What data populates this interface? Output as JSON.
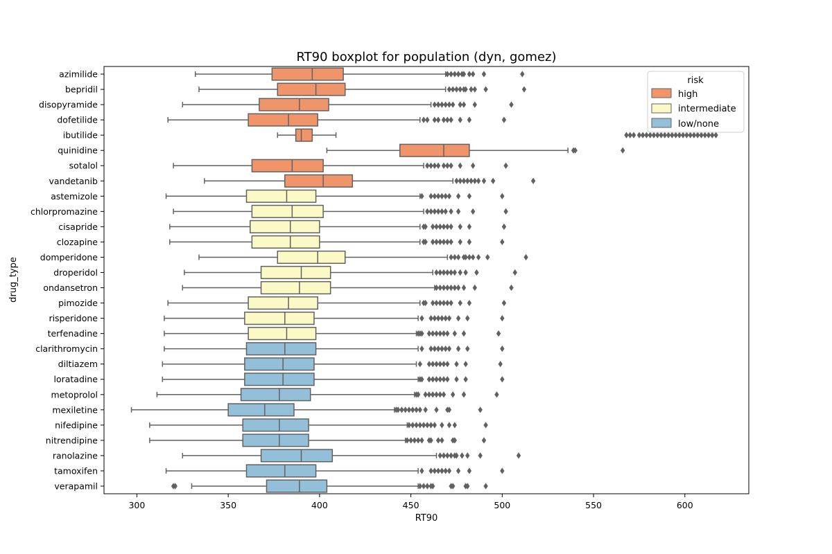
{
  "chart_data": {
    "type": "boxplot",
    "orientation": "horizontal",
    "title": "RT90 boxplot for population (dyn, gomez)",
    "xlabel": "RT90",
    "ylabel": "drug_type",
    "xlim": [
      282,
      635
    ],
    "xticks": [
      300,
      350,
      400,
      450,
      500,
      550,
      600
    ],
    "legend": {
      "title": "risk",
      "placement": "top-right",
      "entries": [
        {
          "label": "high",
          "color": "#f0956a"
        },
        {
          "label": "intermediate",
          "color": "#fbf9c6"
        },
        {
          "label": "low/none",
          "color": "#93c0d8"
        }
      ]
    },
    "colors": {
      "box_edge": "#616161",
      "frame": "#000000"
    },
    "drugs": [
      {
        "name": "azimilide",
        "risk": "high",
        "whisker_low": 332,
        "q1": 374,
        "median": 396,
        "q3": 413,
        "whisker_high": 469,
        "outliers": [
          470,
          472,
          474,
          476,
          478,
          479,
          482,
          484,
          490,
          511
        ]
      },
      {
        "name": "bepridil",
        "risk": "high",
        "whisker_low": 334,
        "q1": 377,
        "median": 398,
        "q3": 414,
        "whisker_high": 469,
        "outliers": [
          471,
          473,
          475,
          477,
          479,
          480,
          483,
          485,
          491,
          512
        ]
      },
      {
        "name": "disopyramide",
        "risk": "high",
        "whisker_low": 325,
        "q1": 367,
        "median": 389,
        "q3": 405,
        "whisker_high": 461,
        "outliers": [
          463,
          465,
          467,
          469,
          471,
          473,
          477,
          479,
          485,
          505
        ]
      },
      {
        "name": "dofetilide",
        "risk": "high",
        "whisker_low": 317,
        "q1": 361,
        "median": 383,
        "q3": 399,
        "whisker_high": 455,
        "outliers": [
          457,
          459,
          463,
          465,
          468,
          470,
          472,
          477,
          482,
          501
        ]
      },
      {
        "name": "ibutilide",
        "risk": "high",
        "whisker_low": 377,
        "q1": 387,
        "median": 390,
        "q3": 396,
        "whisker_high": 409,
        "outliers": [
          568,
          570,
          572,
          575,
          577,
          579,
          581,
          583,
          585,
          587,
          589,
          591,
          593,
          595,
          597,
          599,
          601,
          603,
          605,
          607,
          609,
          611,
          613,
          615,
          617
        ]
      },
      {
        "name": "quinidine",
        "risk": "high",
        "whisker_low": 404,
        "q1": 444,
        "median": 468,
        "q3": 482,
        "whisker_high": 536,
        "outliers": [
          539,
          540,
          566
        ]
      },
      {
        "name": "sotalol",
        "risk": "high",
        "whisker_low": 320,
        "q1": 363,
        "median": 385,
        "q3": 402,
        "whisker_high": 457,
        "outliers": [
          459,
          461,
          463,
          465,
          468,
          470,
          472,
          477,
          484,
          502
        ]
      },
      {
        "name": "vandetanib",
        "risk": "high",
        "whisker_low": 337,
        "q1": 381,
        "median": 402,
        "q3": 418,
        "whisker_high": 473,
        "outliers": [
          475,
          477,
          479,
          481,
          483,
          485,
          487,
          490,
          495,
          517
        ]
      },
      {
        "name": "astemizole",
        "risk": "intermediate",
        "whisker_low": 316,
        "q1": 360,
        "median": 382,
        "q3": 398,
        "whisker_high": 455,
        "outliers": [
          456,
          461,
          463,
          465,
          467,
          469,
          471,
          476,
          482,
          500
        ]
      },
      {
        "name": "chlorpromazine",
        "risk": "intermediate",
        "whisker_low": 320,
        "q1": 363,
        "median": 385,
        "q3": 402,
        "whisker_high": 457,
        "outliers": [
          459,
          461,
          463,
          465,
          467,
          469,
          472,
          476,
          484,
          502
        ]
      },
      {
        "name": "cisapride",
        "risk": "intermediate",
        "whisker_low": 318,
        "q1": 362,
        "median": 384,
        "q3": 400,
        "whisker_high": 455,
        "outliers": [
          457,
          458,
          462,
          464,
          466,
          468,
          470,
          472,
          477,
          482,
          501
        ]
      },
      {
        "name": "clozapine",
        "risk": "intermediate",
        "whisker_low": 318,
        "q1": 363,
        "median": 384,
        "q3": 400,
        "whisker_high": 455,
        "outliers": [
          457,
          458,
          462,
          464,
          466,
          468,
          470,
          472,
          477,
          482,
          500
        ]
      },
      {
        "name": "domperidone",
        "risk": "intermediate",
        "whisker_low": 334,
        "q1": 377,
        "median": 399,
        "q3": 414,
        "whisker_high": 470,
        "outliers": [
          472,
          474,
          476,
          479,
          480,
          482,
          484,
          487,
          492,
          513
        ]
      },
      {
        "name": "droperidol",
        "risk": "intermediate",
        "whisker_low": 326,
        "q1": 368,
        "median": 390,
        "q3": 406,
        "whisker_high": 462,
        "outliers": [
          464,
          466,
          468,
          470,
          472,
          474,
          477,
          480,
          486,
          507
        ]
      },
      {
        "name": "ondansetron",
        "risk": "intermediate",
        "whisker_low": 325,
        "q1": 368,
        "median": 389,
        "q3": 406,
        "whisker_high": 463,
        "outliers": [
          464,
          466,
          468,
          470,
          472,
          474,
          476,
          479,
          485,
          505
        ]
      },
      {
        "name": "pimozide",
        "risk": "intermediate",
        "whisker_low": 317,
        "q1": 361,
        "median": 383,
        "q3": 399,
        "whisker_high": 455,
        "outliers": [
          457,
          458,
          462,
          464,
          466,
          468,
          470,
          472,
          477,
          482,
          501
        ]
      },
      {
        "name": "risperidone",
        "risk": "intermediate",
        "whisker_low": 315,
        "q1": 359,
        "median": 381,
        "q3": 397,
        "whisker_high": 454,
        "outliers": [
          456,
          461,
          463,
          465,
          467,
          469,
          471,
          476,
          481,
          500
        ]
      },
      {
        "name": "terfenadine",
        "risk": "intermediate",
        "whisker_low": 315,
        "q1": 361,
        "median": 382,
        "q3": 398,
        "whisker_high": 453,
        "outliers": [
          454,
          455,
          456,
          460,
          462,
          464,
          466,
          468,
          470,
          474,
          479,
          498
        ]
      },
      {
        "name": "clarithromycin",
        "risk": "low/none",
        "whisker_low": 315,
        "q1": 360,
        "median": 381,
        "q3": 398,
        "whisker_high": 454,
        "outliers": [
          456,
          461,
          463,
          465,
          467,
          469,
          471,
          476,
          481,
          500
        ]
      },
      {
        "name": "diltiazem",
        "risk": "low/none",
        "whisker_low": 314,
        "q1": 359,
        "median": 380,
        "q3": 397,
        "whisker_high": 453,
        "outliers": [
          455,
          460,
          462,
          464,
          466,
          468,
          470,
          475,
          480,
          499
        ]
      },
      {
        "name": "loratadine",
        "risk": "low/none",
        "whisker_low": 314,
        "q1": 359,
        "median": 380,
        "q3": 397,
        "whisker_high": 454,
        "outliers": [
          455,
          456,
          460,
          462,
          464,
          466,
          468,
          470,
          475,
          480,
          500
        ]
      },
      {
        "name": "metoprolol",
        "risk": "low/none",
        "whisker_low": 311,
        "q1": 357,
        "median": 378,
        "q3": 395,
        "whisker_high": 452,
        "outliers": [
          453,
          454,
          458,
          460,
          462,
          464,
          466,
          468,
          473,
          479,
          497
        ]
      },
      {
        "name": "mexiletine",
        "risk": "low/none",
        "whisker_low": 297,
        "q1": 350,
        "median": 370,
        "q3": 386,
        "whisker_high": 441,
        "outliers": [
          442,
          443,
          445,
          447,
          449,
          451,
          453,
          455,
          458,
          464,
          470,
          471,
          488
        ]
      },
      {
        "name": "nifedipine",
        "risk": "low/none",
        "whisker_low": 307,
        "q1": 358,
        "median": 378,
        "q3": 394,
        "whisker_high": 448,
        "outliers": [
          449,
          451,
          453,
          455,
          457,
          459,
          461,
          463,
          467,
          471,
          474,
          491
        ]
      },
      {
        "name": "nitrendipine",
        "risk": "low/none",
        "whisker_low": 307,
        "q1": 358,
        "median": 378,
        "q3": 394,
        "whisker_high": 447,
        "outliers": [
          448,
          450,
          452,
          454,
          456,
          460,
          461,
          465,
          467,
          473,
          474,
          490
        ]
      },
      {
        "name": "ranolazine",
        "risk": "low/none",
        "whisker_low": 325,
        "q1": 368,
        "median": 390,
        "q3": 407,
        "whisker_high": 464,
        "outliers": [
          466,
          468,
          470,
          472,
          474,
          475,
          478,
          481,
          488,
          509
        ]
      },
      {
        "name": "tamoxifen",
        "risk": "low/none",
        "whisker_low": 316,
        "q1": 360,
        "median": 381,
        "q3": 398,
        "whisker_high": 454,
        "outliers": [
          456,
          461,
          463,
          465,
          467,
          469,
          471,
          476,
          482,
          500
        ]
      },
      {
        "name": "verapamil",
        "risk": "low/none",
        "whisker_low": 330,
        "q1": 371,
        "median": 389,
        "q3": 404,
        "whisker_high": 454,
        "outliers": [
          320,
          321,
          455,
          457,
          459,
          461,
          462,
          472,
          473,
          480,
          481,
          491
        ]
      }
    ]
  }
}
